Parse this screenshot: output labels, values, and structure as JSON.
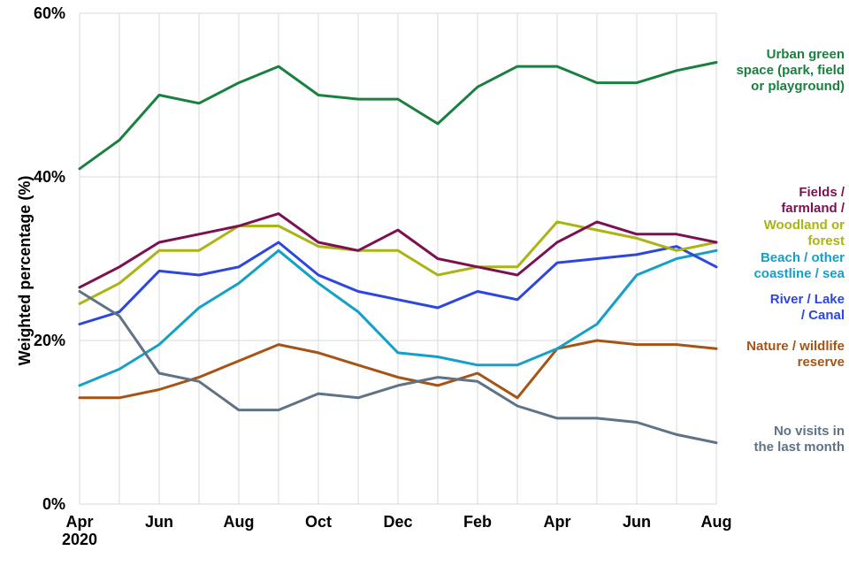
{
  "chart_data": {
    "type": "line",
    "title": "",
    "xlabel": "",
    "ylabel": "Weighted percentage (%)",
    "ylim": [
      0,
      60
    ],
    "grid": true,
    "grid_color": "#d9d9d9",
    "legend_position": "right",
    "y_ticks": [
      {
        "value": 0,
        "label": "0%"
      },
      {
        "value": 20,
        "label": "20%"
      },
      {
        "value": 40,
        "label": "40%"
      },
      {
        "value": 60,
        "label": "60%"
      }
    ],
    "x_ticks": [
      {
        "label": "Apr",
        "sublabel": "2020"
      },
      {
        "label": "Jun"
      },
      {
        "label": "Aug"
      },
      {
        "label": "Oct"
      },
      {
        "label": "Dec"
      },
      {
        "label": "Feb"
      },
      {
        "label": "Apr"
      },
      {
        "label": "Jun"
      },
      {
        "label": "Aug"
      }
    ],
    "x": [
      "Apr 2020",
      "May 2020",
      "Jun 2020",
      "Jul 2020",
      "Aug 2020",
      "Sep 2020",
      "Oct 2020",
      "Nov 2020",
      "Dec 2020",
      "Jan 2021",
      "Feb 2021",
      "Mar 2021",
      "Apr 2021",
      "May 2021",
      "Jun 2021",
      "Jul 2021",
      "Aug 2021"
    ],
    "series": [
      {
        "name": "Urban green space (park, field or playground)",
        "label_lines": [
          "Urban green",
          "space (park, field",
          "or playground)"
        ],
        "color": "#1a8040",
        "values": [
          41,
          44.5,
          50,
          49,
          51.5,
          53.5,
          50,
          49.5,
          49.5,
          46.5,
          51,
          53.5,
          53.5,
          51.5,
          51.5,
          53,
          54
        ]
      },
      {
        "name": "Fields / farmland /",
        "label_lines": [
          "Fields /",
          "farmland /"
        ],
        "color": "#7c1152",
        "values": [
          26.5,
          29,
          32,
          33,
          34,
          35.5,
          32,
          31,
          33.5,
          30,
          29,
          28,
          32,
          34.5,
          33,
          33,
          32
        ]
      },
      {
        "name": "Woodland or forest",
        "label_lines": [
          "Woodland or",
          "forest"
        ],
        "color": "#aab513",
        "values": [
          24.5,
          27,
          31,
          31,
          34,
          34,
          31.5,
          31,
          31,
          28,
          29,
          29,
          34.5,
          33.5,
          32.5,
          31,
          32
        ]
      },
      {
        "name": "Beach / other coastline / sea",
        "label_lines": [
          "Beach / other",
          "coastline / sea"
        ],
        "color": "#13a1c7",
        "values": [
          14.5,
          16.5,
          19.5,
          24,
          27,
          31,
          27,
          23.5,
          18.5,
          18,
          17,
          17,
          19,
          22,
          28,
          30,
          31
        ]
      },
      {
        "name": "River / Lake / Canal",
        "label_lines": [
          "River / Lake",
          "/ Canal"
        ],
        "color": "#2d46e0",
        "values": [
          22,
          23.5,
          28.5,
          28,
          29,
          32,
          28,
          26,
          25,
          24,
          26,
          25,
          29.5,
          30,
          30.5,
          31.5,
          29
        ]
      },
      {
        "name": "Nature / wildlife reserve",
        "label_lines": [
          "Nature / wildlife",
          "reserve"
        ],
        "color": "#a65416",
        "values": [
          13,
          13,
          14,
          15.5,
          17.5,
          19.5,
          18.5,
          17,
          15.5,
          14.5,
          16,
          13,
          19,
          20,
          19.5,
          19.5,
          19
        ]
      },
      {
        "name": "No visits in the last month",
        "label_lines": [
          "No visits in",
          "the last month"
        ],
        "color": "#5e7385",
        "values": [
          26,
          23,
          16,
          15,
          11.5,
          11.5,
          13.5,
          13,
          14.5,
          15.5,
          15,
          12,
          10.5,
          10.5,
          10,
          8.5,
          7.5
        ]
      }
    ]
  }
}
